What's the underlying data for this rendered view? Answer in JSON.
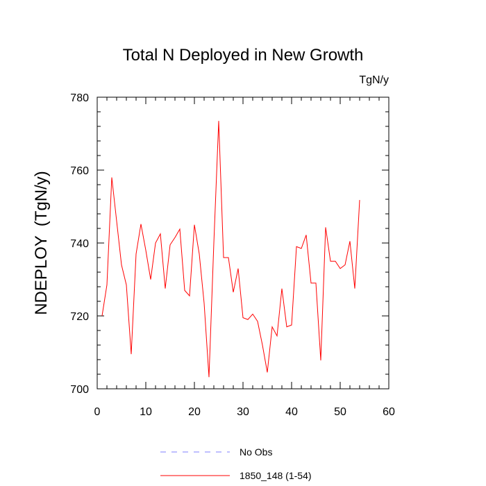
{
  "chart_data": {
    "type": "line",
    "title": "Total N Deployed in New Growth",
    "units_label": "TgN/y",
    "ylabel": "NDEPLOY  (TgN/y)",
    "xlabel": "",
    "xlim": [
      0,
      60
    ],
    "ylim": [
      700,
      780
    ],
    "xticks": [
      0,
      10,
      20,
      30,
      40,
      50,
      60
    ],
    "yticks": [
      700,
      720,
      740,
      760,
      780
    ],
    "grid": false,
    "legend_position": "bottom",
    "series": [
      {
        "name": "1850_148 (1-54)",
        "color": "#ff0000",
        "style": "solid",
        "x": [
          1,
          2,
          3,
          4,
          5,
          6,
          7,
          8,
          9,
          10,
          11,
          12,
          13,
          14,
          15,
          16,
          17,
          18,
          19,
          20,
          21,
          22,
          23,
          24,
          25,
          26,
          27,
          28,
          29,
          30,
          31,
          32,
          33,
          34,
          35,
          36,
          37,
          38,
          39,
          40,
          41,
          42,
          43,
          44,
          45,
          46,
          47,
          48,
          49,
          50,
          51,
          52,
          53,
          54
        ],
        "values": [
          720,
          728.5,
          758,
          746,
          734,
          728.5,
          709.5,
          737,
          745.2,
          738,
          730,
          740,
          742.5,
          727.5,
          739.5,
          741.5,
          743.8,
          727,
          725.5,
          745,
          737,
          723.5,
          703.2,
          740,
          773.5,
          736,
          736,
          726.5,
          733,
          719.5,
          719,
          720.5,
          718.5,
          712,
          704.5,
          717,
          714.5,
          727.5,
          717,
          717.5,
          739,
          738.5,
          742.2,
          729,
          729,
          707.8,
          744.3,
          735,
          735,
          733,
          734,
          740.5,
          727.5,
          751.8
        ]
      },
      {
        "name": "No Obs",
        "color": "#7f7fff",
        "style": "dashed",
        "x": [],
        "values": []
      }
    ]
  }
}
